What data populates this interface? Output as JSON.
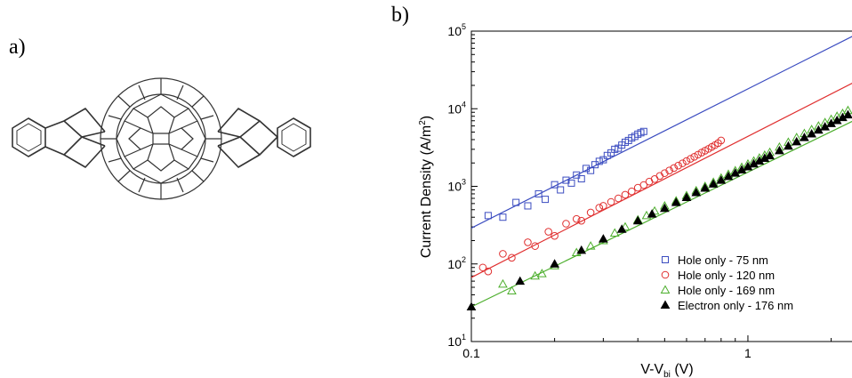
{
  "panels": {
    "a_label": "a)",
    "b_label": "b)"
  },
  "chart_data": {
    "type": "scatter",
    "title": "",
    "xlabel": "V-V",
    "xlabel_sub": "bi",
    "xlabel_unit": " (V)",
    "ylabel": "Current Density (A/m",
    "ylabel_sup": "2",
    "ylabel_end": ")",
    "xscale": "log",
    "yscale": "log",
    "xlim": [
      0.1,
      2.6
    ],
    "ylim": [
      10,
      100000
    ],
    "x_ticks": [
      {
        "v": 0.1,
        "label": "0.1"
      },
      {
        "v": 1,
        "label": "1"
      }
    ],
    "y_ticks": [
      {
        "v": 10,
        "base": "10",
        "exp": "1"
      },
      {
        "v": 100,
        "base": "10",
        "exp": "2"
      },
      {
        "v": 1000,
        "base": "10",
        "exp": "3"
      },
      {
        "v": 10000,
        "base": "10",
        "exp": "4"
      },
      {
        "v": 100000,
        "base": "10",
        "exp": "5"
      }
    ],
    "legend_position": "bottom-right",
    "series": [
      {
        "name": "Hole only - 75 nm",
        "color": "#3b4cc0",
        "marker": "square",
        "x": [
          0.115,
          0.13,
          0.145,
          0.16,
          0.175,
          0.185,
          0.2,
          0.21,
          0.22,
          0.23,
          0.24,
          0.25,
          0.26,
          0.27,
          0.28,
          0.29,
          0.3,
          0.31,
          0.32,
          0.33,
          0.34,
          0.35,
          0.36,
          0.37,
          0.38,
          0.39,
          0.4,
          0.41,
          0.42
        ],
        "y": [
          420,
          400,
          620,
          560,
          800,
          680,
          1050,
          900,
          1200,
          1100,
          1400,
          1250,
          1700,
          1600,
          1900,
          2100,
          2200,
          2500,
          2700,
          3000,
          3100,
          3400,
          3700,
          3900,
          4200,
          4400,
          4700,
          4900,
          5100
        ],
        "fit": {
          "x": [
            0.1,
            2.6
          ],
          "y": [
            290,
            100000
          ]
        }
      },
      {
        "name": "Hole only - 120 nm",
        "color": "#e03030",
        "marker": "circle",
        "x": [
          0.11,
          0.115,
          0.13,
          0.14,
          0.16,
          0.17,
          0.19,
          0.2,
          0.22,
          0.24,
          0.25,
          0.27,
          0.29,
          0.3,
          0.32,
          0.34,
          0.36,
          0.38,
          0.4,
          0.42,
          0.44,
          0.46,
          0.48,
          0.5,
          0.52,
          0.54,
          0.56,
          0.58,
          0.6,
          0.62,
          0.64,
          0.66,
          0.68,
          0.7,
          0.72,
          0.74,
          0.76,
          0.78,
          0.8
        ],
        "y": [
          90,
          80,
          135,
          120,
          190,
          170,
          260,
          230,
          330,
          380,
          360,
          460,
          530,
          560,
          630,
          700,
          780,
          860,
          960,
          1040,
          1150,
          1240,
          1360,
          1480,
          1600,
          1720,
          1850,
          1980,
          2120,
          2260,
          2400,
          2560,
          2720,
          2880,
          3040,
          3220,
          3400,
          3600,
          3900
        ],
        "fit": {
          "x": [
            0.1,
            2.6
          ],
          "y": [
            67,
            25000
          ]
        }
      },
      {
        "name": "Hole only - 169 nm",
        "color": "#4cae2c",
        "marker": "triangle-open",
        "x": [
          0.13,
          0.14,
          0.17,
          0.18,
          0.2,
          0.24,
          0.27,
          0.3,
          0.33,
          0.36,
          0.4,
          0.43,
          0.46,
          0.5,
          0.55,
          0.6,
          0.65,
          0.7,
          0.75,
          0.8,
          0.85,
          0.9,
          0.95,
          1.0,
          1.05,
          1.1,
          1.15,
          1.2,
          1.3,
          1.4,
          1.5,
          1.6,
          1.7,
          1.8,
          1.9,
          2.0,
          2.1,
          2.2,
          2.3,
          2.4,
          2.5,
          2.6
        ],
        "y": [
          55,
          45,
          70,
          75,
          95,
          140,
          170,
          200,
          250,
          300,
          370,
          420,
          480,
          560,
          650,
          760,
          880,
          1000,
          1130,
          1280,
          1430,
          1590,
          1760,
          1940,
          2120,
          2320,
          2520,
          2740,
          3200,
          3700,
          4250,
          4800,
          5400,
          6000,
          6650,
          7300,
          8000,
          8700,
          9500,
          10200,
          11000,
          11800
        ],
        "fit": {
          "x": [
            0.1,
            2.6
          ],
          "y": [
            28,
            8000
          ]
        }
      },
      {
        "name": "Electron only - 176 nm",
        "color": "#000000",
        "marker": "triangle-filled",
        "x": [
          0.1,
          0.15,
          0.2,
          0.25,
          0.3,
          0.35,
          0.4,
          0.45,
          0.5,
          0.55,
          0.6,
          0.65,
          0.7,
          0.75,
          0.8,
          0.85,
          0.9,
          0.95,
          1.0,
          1.05,
          1.1,
          1.15,
          1.2,
          1.3,
          1.4,
          1.5,
          1.6,
          1.7,
          1.8,
          1.9,
          2.0,
          2.1,
          2.2,
          2.3,
          2.4,
          2.5,
          2.6
        ],
        "y": [
          28,
          60,
          100,
          150,
          210,
          280,
          360,
          440,
          520,
          620,
          720,
          830,
          950,
          1070,
          1200,
          1340,
          1480,
          1630,
          1790,
          1950,
          2120,
          2300,
          2480,
          2880,
          3300,
          3750,
          4250,
          4750,
          5300,
          5850,
          6450,
          7050,
          7700,
          8350,
          9050,
          9750,
          10500
        ],
        "fit": null
      }
    ]
  }
}
